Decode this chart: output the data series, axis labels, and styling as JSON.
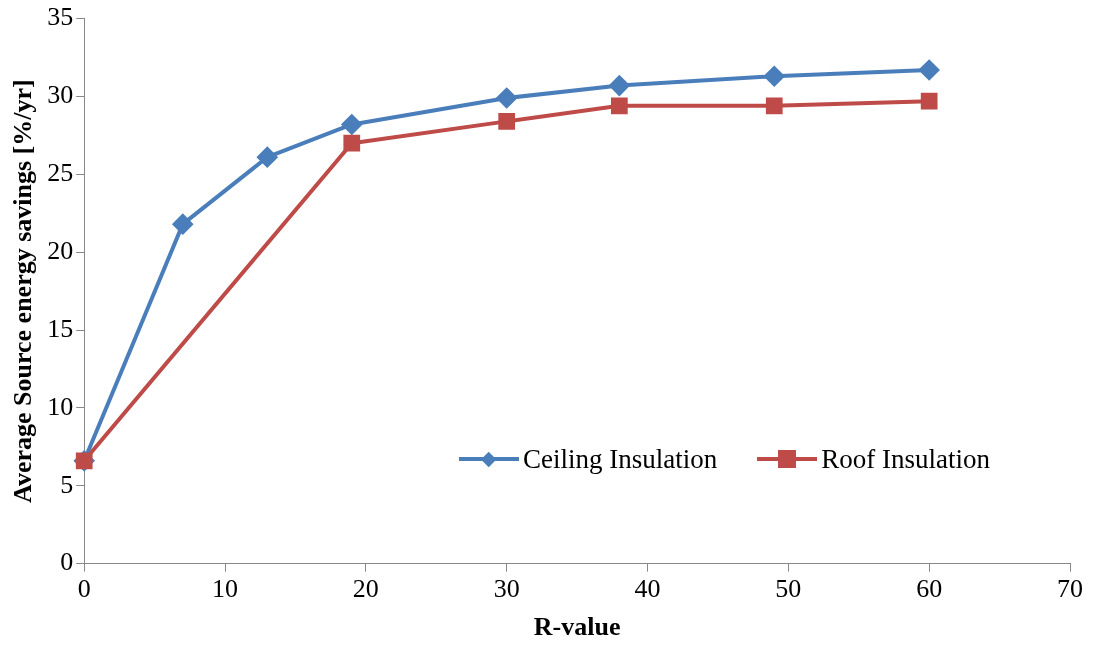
{
  "chart_data": {
    "type": "line",
    "xlabel": "R-value",
    "ylabel": "Average Source energy savings [%/yr]",
    "xlim": [
      0,
      70
    ],
    "xticks": [
      0,
      10,
      20,
      30,
      40,
      50,
      60,
      70
    ],
    "ylim": [
      0,
      35
    ],
    "yticks": [
      0,
      5,
      10,
      15,
      20,
      25,
      30,
      35
    ],
    "grid": false,
    "legend": "bottom right",
    "series": [
      {
        "name": "Ceiling Insulation",
        "color": "#4a7ebb",
        "marker": "diamond",
        "x": [
          0,
          7,
          13,
          19,
          30,
          38,
          49,
          60
        ],
        "values": [
          6.6,
          21.8,
          26.1,
          28.2,
          29.9,
          30.7,
          31.3,
          31.7
        ]
      },
      {
        "name": "Roof Insulation",
        "color": "#be4b48",
        "marker": "square",
        "x": [
          0,
          19,
          30,
          38,
          49,
          60
        ],
        "values": [
          6.6,
          27.0,
          28.4,
          29.4,
          29.4,
          29.7
        ]
      }
    ]
  }
}
